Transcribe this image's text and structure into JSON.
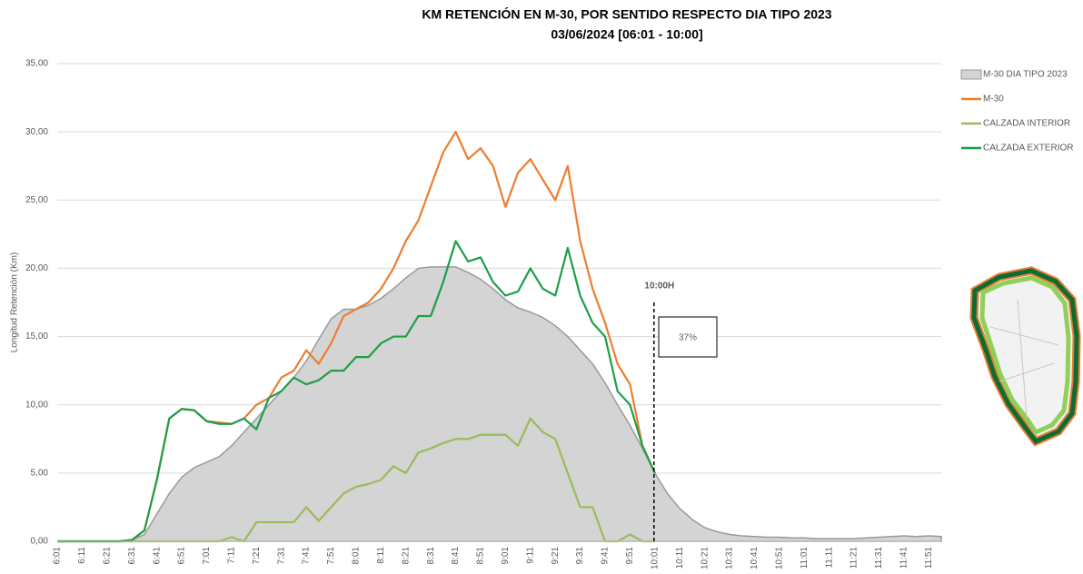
{
  "chart_data": {
    "type": "line",
    "title": "KM RETENCIÓN EN M-30, POR SENTIDO RESPECTO DIA TIPO 2023",
    "subtitle": "03/06/2024    [06:01 - 10:00]",
    "y_label": "Longitud Retención (Km)",
    "categories": [
      "6:01",
      null,
      "6:11",
      null,
      "6:21",
      null,
      "6:31",
      null,
      "6:41",
      null,
      "6:51",
      null,
      "7:01",
      null,
      "7:11",
      null,
      "7:21",
      null,
      "7:31",
      null,
      "7:41",
      null,
      "7:51",
      null,
      "8:01",
      null,
      "8:11",
      null,
      "8:21",
      null,
      "8:31",
      null,
      "8:41",
      null,
      "8:51",
      null,
      "9:01",
      null,
      "9:11",
      null,
      "9:21",
      null,
      "9:31",
      null,
      "9:41",
      null,
      "9:51",
      null,
      "10:01",
      null,
      "10:11",
      null,
      "10:21",
      null,
      "10:31",
      null,
      "10:41",
      null,
      "10:51",
      null,
      "11:01",
      null,
      "11:11",
      null,
      "11:21",
      null,
      "11:31",
      null,
      "11:41",
      null,
      "11:51",
      null
    ],
    "series": [
      {
        "name": "M-30 DIA TIPO 2023",
        "kind": "area",
        "color": "#d4d4d4",
        "values": [
          0,
          0,
          0,
          0,
          0,
          0,
          0.1,
          0.5,
          2,
          3.5,
          4.7,
          5.4,
          5.8,
          6.2,
          7,
          8,
          9,
          10,
          11,
          12,
          13.2,
          14.8,
          16.3,
          17,
          17,
          17.3,
          17.8,
          18.5,
          19.3,
          20,
          20.1,
          20.1,
          20.1,
          19.7,
          19.2,
          18.5,
          17.7,
          17.1,
          16.8,
          16.4,
          15.8,
          15,
          14,
          13,
          11.6,
          10,
          8.5,
          6.8,
          5,
          3.5,
          2.4,
          1.6,
          1.0,
          0.7,
          0.5,
          0.4,
          0.35,
          0.3,
          0.3,
          0.25,
          0.25,
          0.2,
          0.2,
          0.2,
          0.2,
          0.25,
          0.3,
          0.35,
          0.4,
          0.35,
          0.4,
          0.35
        ]
      },
      {
        "name": "M-30",
        "kind": "line",
        "color": "#ed7d31",
        "values": [
          0,
          0,
          0,
          0,
          0,
          0,
          0.1,
          0.8,
          4.5,
          9,
          9.7,
          9.6,
          8.8,
          8.7,
          8.6,
          9,
          10,
          10.5,
          12,
          12.5,
          14,
          13,
          14.5,
          16.5,
          17,
          17.5,
          18.5,
          20,
          22,
          23.5,
          26,
          28.5,
          30,
          28,
          28.8,
          27.5,
          24.5,
          27,
          28,
          26.5,
          25,
          27.5,
          22,
          18.5,
          16,
          13,
          11.5,
          7,
          5,
          null,
          null,
          null,
          null,
          null,
          null,
          null,
          null,
          null,
          null,
          null,
          null,
          null,
          null,
          null,
          null,
          null,
          null,
          null,
          null,
          null,
          null,
          null
        ]
      },
      {
        "name": "CALZADA INTERIOR",
        "kind": "line",
        "color": "#9bbb59",
        "values": [
          0,
          0,
          0,
          0,
          0,
          0,
          0,
          0,
          0,
          0,
          0,
          0,
          0,
          0,
          0.3,
          0,
          1.4,
          1.4,
          1.4,
          1.4,
          2.5,
          1.5,
          2.5,
          3.5,
          4,
          4.2,
          4.5,
          5.5,
          5,
          6.5,
          6.8,
          7.2,
          7.5,
          7.5,
          7.8,
          7.8,
          7.8,
          7,
          9,
          8,
          7.5,
          5,
          2.5,
          2.5,
          0,
          0,
          0.5,
          0,
          0,
          null,
          null,
          null,
          null,
          null,
          null,
          null,
          null,
          null,
          null,
          null,
          null,
          null,
          null,
          null,
          null,
          null,
          null,
          null,
          null,
          null,
          null,
          null
        ]
      },
      {
        "name": "CALZADA EXTERIOR",
        "kind": "line",
        "color": "#1e9e48",
        "values": [
          0,
          0,
          0,
          0,
          0,
          0,
          0.1,
          0.8,
          4.5,
          9,
          9.7,
          9.6,
          8.8,
          8.6,
          8.6,
          9,
          8.2,
          10.5,
          11,
          12,
          11.5,
          11.8,
          12.5,
          12.5,
          13.5,
          13.5,
          14.5,
          15,
          15,
          16.5,
          16.5,
          19,
          22,
          20.5,
          20.8,
          19,
          18,
          18.3,
          20,
          18.5,
          18,
          21.5,
          18,
          16,
          15,
          11,
          10,
          7,
          5,
          null,
          null,
          null,
          null,
          null,
          null,
          null,
          null,
          null,
          null,
          null,
          null,
          null,
          null,
          null,
          null,
          null,
          null,
          null,
          null,
          null,
          null,
          null
        ]
      }
    ],
    "ylim": [
      0,
      35
    ],
    "yticks": [
      {
        "value": 0,
        "label": "0,00"
      },
      {
        "value": 5,
        "label": "5,00"
      },
      {
        "value": 10,
        "label": "10,00"
      },
      {
        "value": 15,
        "label": "15,00"
      },
      {
        "value": 20,
        "label": "20,00"
      },
      {
        "value": 25,
        "label": "25,00"
      },
      {
        "value": 30,
        "label": "30,00"
      },
      {
        "value": 35,
        "label": "35,00"
      }
    ],
    "grid": true,
    "legend": "right",
    "annotations": [
      "10:00H",
      "37%"
    ]
  }
}
